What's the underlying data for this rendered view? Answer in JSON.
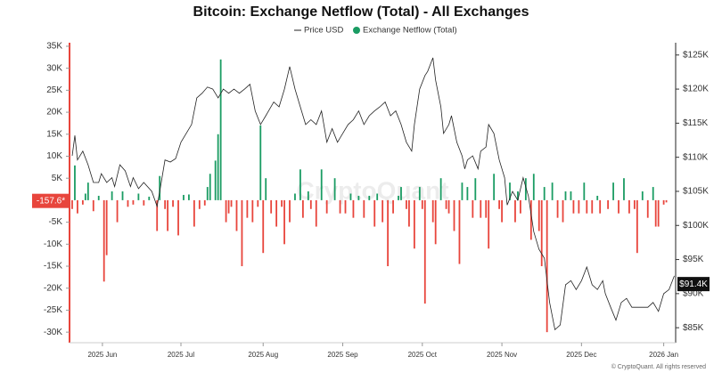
{
  "chart_data": {
    "type": "bar-line",
    "title": "Bitcoin: Exchange Netflow (Total) - All Exchanges",
    "watermark": "CryptoQuant",
    "footer": "© CryptoQuant. All rights reserved",
    "xlim": [
      0,
      228.5
    ],
    "xticks": [
      {
        "value": 12.4,
        "label": "2025 Jun"
      },
      {
        "value": 42,
        "label": "2025 Jul"
      },
      {
        "value": 73,
        "label": "2025 Aug"
      },
      {
        "value": 103,
        "label": "2025 Sep"
      },
      {
        "value": 133,
        "label": "2025 Oct"
      },
      {
        "value": 163,
        "label": "2025 Nov"
      },
      {
        "value": 193,
        "label": "2025 Dec"
      },
      {
        "value": 224,
        "label": "2026 Jan"
      }
    ],
    "ylim": [
      -32400,
      35800
    ],
    "yticks": [
      {
        "value": -30000,
        "label": "-30K"
      },
      {
        "value": -25000,
        "label": "-25K"
      },
      {
        "value": -20000,
        "label": "-20K"
      },
      {
        "value": -15000,
        "label": "-15K"
      },
      {
        "value": -10000,
        "label": "-10K"
      },
      {
        "value": -5000,
        "label": "-5K"
      },
      0,
      {
        "value": 5000,
        "label": "5K"
      },
      {
        "value": 10000,
        "label": "10K"
      },
      {
        "value": 15000,
        "label": "15K"
      },
      {
        "value": 20000,
        "label": "20K"
      },
      {
        "value": 25000,
        "label": "25K"
      },
      {
        "value": 30000,
        "label": "30K"
      },
      {
        "value": 35000,
        "label": "35K"
      }
    ],
    "y2lim": [
      82800,
      126800
    ],
    "y2ticks": [
      {
        "value": 85000,
        "label": "$85K"
      },
      {
        "value": 90000,
        "label": "$90K"
      },
      {
        "value": 95000,
        "label": "$95K"
      },
      {
        "value": 100000,
        "label": "$100K"
      },
      {
        "value": 105000,
        "label": "$105K"
      },
      {
        "value": 110000,
        "label": "$110K"
      },
      {
        "value": 115000,
        "label": "$115K"
      },
      {
        "value": 120000,
        "label": "$120K"
      },
      {
        "value": 125000,
        "label": "$125K"
      }
    ],
    "current_values": [
      {
        "value": -157.6,
        "label": "-157.6*",
        "axis": "y",
        "color": "#e8453c"
      },
      {
        "value": 91400,
        "label": "$91.4K",
        "axis": "y2",
        "color": "#111111"
      }
    ],
    "series": [
      {
        "name": "Price USD",
        "type": "line",
        "axis": "y2",
        "color": "#222222",
        "x": [
          1,
          2,
          3,
          5,
          7,
          9,
          11,
          12,
          14,
          16,
          17,
          19,
          21,
          23,
          24,
          26,
          28,
          31,
          33,
          34,
          36,
          38,
          40,
          42,
          44,
          46,
          48,
          50,
          52,
          54,
          56,
          58,
          60,
          62,
          64,
          66,
          68,
          70,
          72,
          74,
          77,
          79,
          81,
          83,
          85,
          87,
          89,
          91,
          93,
          95,
          97,
          99,
          101,
          103,
          105,
          107,
          109,
          111,
          113,
          115,
          117,
          119,
          121,
          123,
          125,
          127,
          129,
          130,
          132,
          134,
          135,
          137,
          138,
          140,
          141,
          143,
          144,
          146,
          148,
          149,
          150,
          152,
          154,
          155,
          157,
          158,
          160,
          162,
          164,
          165,
          167,
          169,
          171,
          173,
          175,
          177,
          179,
          181,
          183,
          185,
          187,
          189,
          191,
          193,
          195,
          197,
          199,
          201,
          202,
          204,
          206,
          208,
          210,
          212,
          214,
          216,
          218,
          220,
          222,
          224,
          226,
          228
        ],
        "values": [
          110200,
          113200,
          109600,
          110900,
          108900,
          106300,
          106300,
          107600,
          106300,
          107000,
          105700,
          108900,
          108000,
          105700,
          107000,
          105400,
          106300,
          105000,
          102800,
          105000,
          109600,
          109300,
          109800,
          112200,
          113500,
          114800,
          118700,
          119400,
          120300,
          120000,
          118700,
          120000,
          119400,
          120000,
          119400,
          120000,
          120700,
          116800,
          114800,
          116100,
          118100,
          117400,
          120000,
          123300,
          120000,
          117400,
          114800,
          115500,
          114800,
          116800,
          112200,
          114200,
          112200,
          113500,
          114800,
          115500,
          116800,
          114800,
          116100,
          116800,
          117400,
          118100,
          116100,
          116800,
          114800,
          112200,
          110900,
          114800,
          120000,
          122000,
          122600,
          124600,
          121300,
          117400,
          113500,
          114800,
          116100,
          112200,
          110200,
          108300,
          109600,
          110200,
          108300,
          110900,
          111500,
          114800,
          113500,
          109600,
          107000,
          103000,
          105000,
          103700,
          107000,
          104300,
          99100,
          96500,
          95200,
          88700,
          84700,
          85400,
          91300,
          91900,
          90600,
          91900,
          93900,
          91300,
          90600,
          91900,
          90000,
          88000,
          86100,
          88700,
          89300,
          88000,
          88000,
          88000,
          88000,
          88700,
          87400,
          90000,
          90600,
          92600
        ]
      },
      {
        "name": "Exchange Netflow (Total)",
        "type": "bar",
        "axis": "y",
        "color": "#1a9c63",
        "positive_color": "#1a9c63",
        "negative_color": "#e8453c",
        "x": [
          1,
          2,
          3,
          5,
          6,
          7,
          9,
          11,
          13,
          14,
          16,
          18,
          20,
          22,
          24,
          26,
          28,
          30,
          33,
          34,
          36,
          37,
          39,
          41,
          43,
          45,
          47,
          49,
          51,
          52,
          53,
          55,
          56,
          57,
          59,
          60,
          61,
          63,
          65,
          67,
          69,
          71,
          72,
          73,
          74,
          76,
          78,
          80,
          81,
          83,
          85,
          87,
          88,
          90,
          91,
          93,
          95,
          97,
          100,
          102,
          104,
          106,
          107,
          109,
          111,
          113,
          115,
          116,
          118,
          120,
          122,
          124,
          125,
          127,
          128,
          130,
          132,
          133,
          134,
          137,
          138,
          140,
          142,
          143,
          145,
          147,
          148,
          150,
          152,
          153,
          155,
          157,
          158,
          160,
          162,
          163,
          166,
          168,
          169,
          170,
          172,
          174,
          175,
          177,
          178,
          179,
          180,
          182,
          184,
          186,
          187,
          189,
          190,
          192,
          194,
          195,
          197,
          199,
          200,
          203,
          205,
          207,
          209,
          211,
          213,
          214,
          216,
          218,
          220,
          221,
          222,
          224,
          225
        ],
        "values": [
          -2000,
          7900,
          -3000,
          -1000,
          1500,
          4000,
          -2500,
          1000,
          -18500,
          -12500,
          2000,
          -5000,
          2000,
          -1500,
          -1000,
          1500,
          -1200,
          800,
          -7000,
          5500,
          -2000,
          -7000,
          -1500,
          -8000,
          1200,
          1300,
          -6000,
          -2000,
          -1200,
          3000,
          6000,
          9000,
          15000,
          32000,
          -5000,
          -3000,
          -1500,
          -7000,
          -15000,
          -4000,
          -5000,
          -1500,
          17000,
          -12000,
          5000,
          -3000,
          -6000,
          -1500,
          -10000,
          -5000,
          1500,
          7000,
          -4000,
          2000,
          -2000,
          -6000,
          7000,
          -3000,
          5000,
          -3000,
          -3000,
          1500,
          -4000,
          1000,
          -4000,
          1000,
          -6000,
          1500,
          -5000,
          -15000,
          -3000,
          1000,
          3000,
          -2000,
          -6000,
          -11000,
          3000,
          -2000,
          -23500,
          -5000,
          -10000,
          5000,
          -2000,
          -3000,
          -7000,
          -14500,
          4000,
          3000,
          -4000,
          5000,
          -4000,
          -4000,
          -11000,
          6000,
          -2000,
          -5000,
          4000,
          -5000,
          2000,
          -3000,
          5000,
          -9000,
          6000,
          -7000,
          -15000,
          3000,
          -30000,
          4000,
          -4000,
          -5000,
          2000,
          2000,
          -3000,
          -3000,
          4000,
          -3000,
          -3000,
          1000,
          -3000,
          -2000,
          4000,
          -3000,
          5000,
          -3000,
          -2000,
          -12000,
          2000,
          -4000,
          3000,
          -6000,
          -6000,
          -1000,
          -500
        ]
      }
    ]
  }
}
